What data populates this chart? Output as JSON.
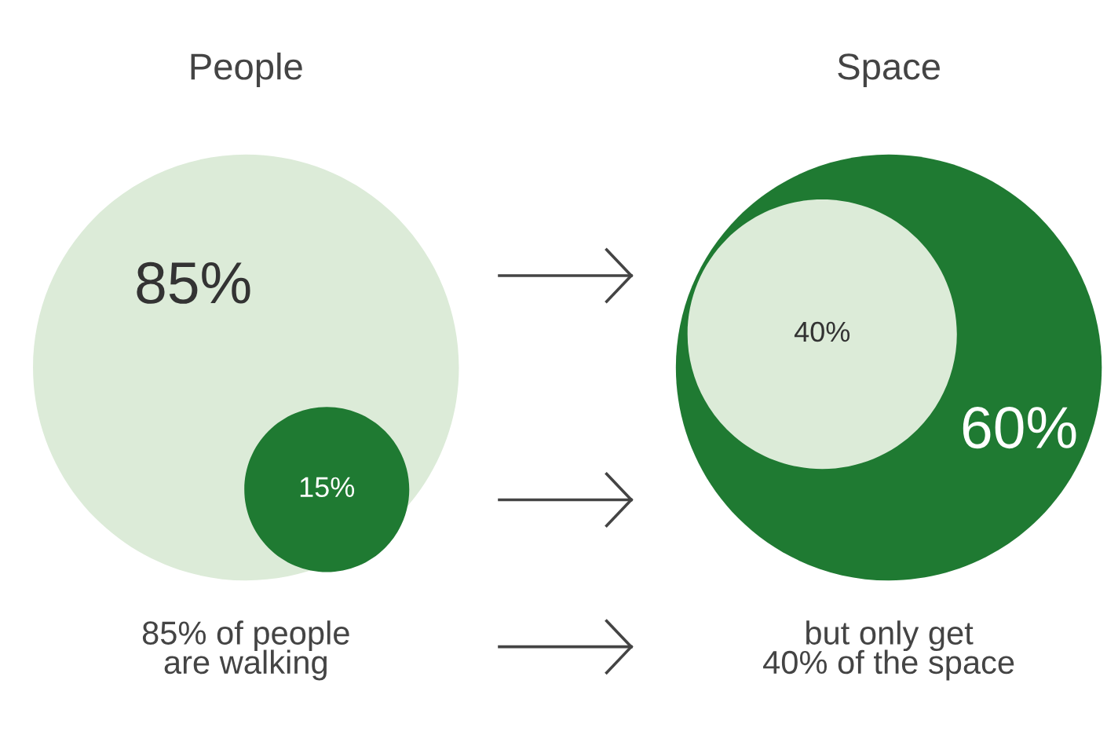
{
  "chart_data": [
    {
      "type": "other",
      "title": "People",
      "categories": [
        null,
        null
      ],
      "values": [
        85,
        15
      ],
      "value_labels": [
        "85%",
        "15%"
      ],
      "colors": [
        "#dcebd8",
        "#1f7a32"
      ],
      "annotations": [
        "85% of people\nare walking"
      ]
    },
    {
      "type": "other",
      "title": "Space",
      "categories": [
        null,
        null
      ],
      "values": [
        60,
        40
      ],
      "value_labels": [
        "60%",
        "40%"
      ],
      "colors": [
        "#1f7a32",
        "#dcebd8"
      ],
      "annotations": [
        "but only get\n40% of the space"
      ]
    }
  ]
}
